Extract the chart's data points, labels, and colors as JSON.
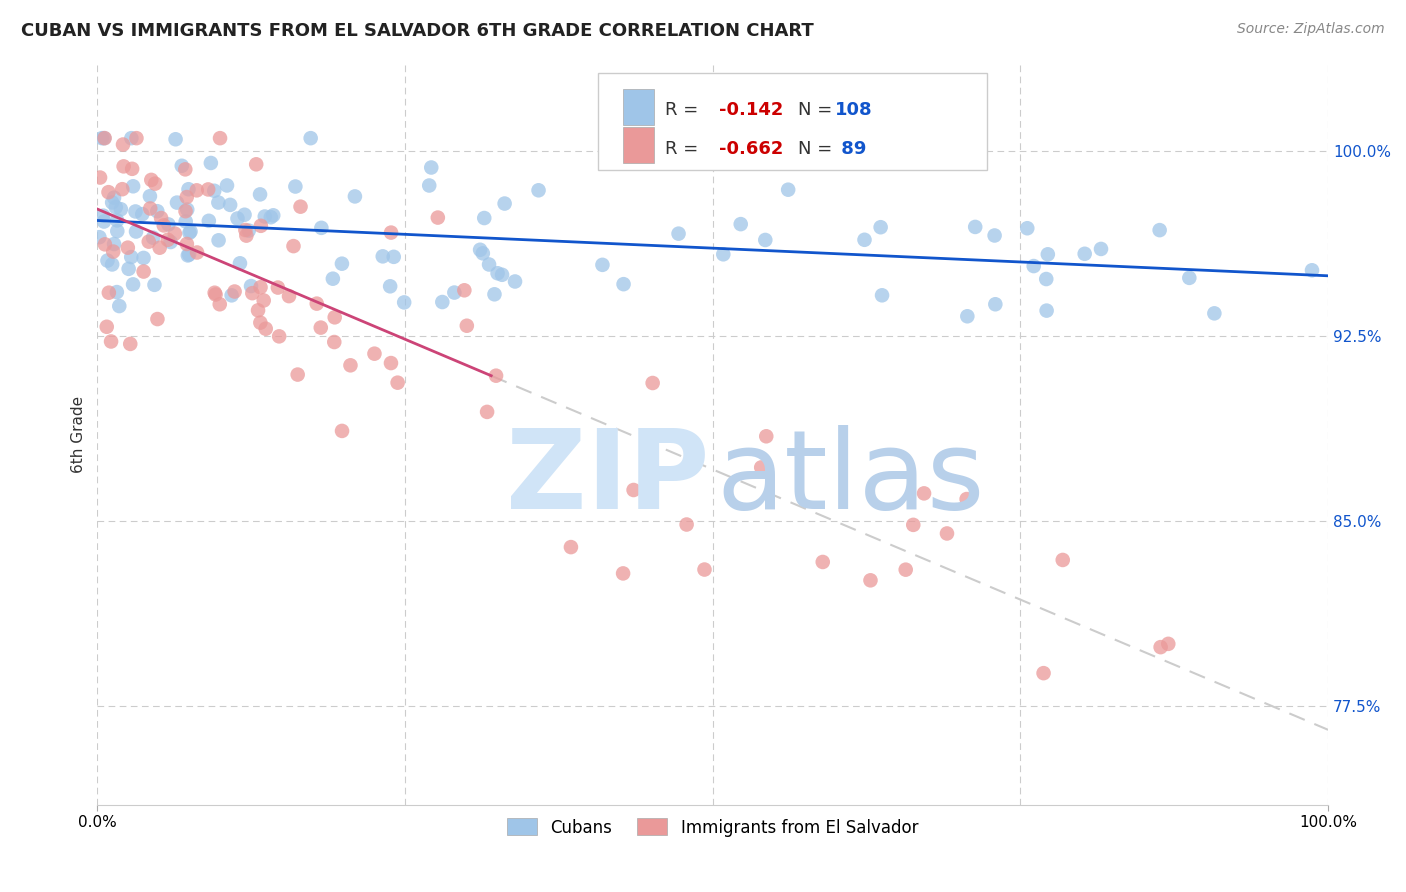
{
  "title": "CUBAN VS IMMIGRANTS FROM EL SALVADOR 6TH GRADE CORRELATION CHART",
  "source": "Source: ZipAtlas.com",
  "ylabel": "6th Grade",
  "ytick_values": [
    0.775,
    0.85,
    0.925,
    1.0
  ],
  "xlim": [
    0.0,
    1.0
  ],
  "ylim": [
    0.735,
    1.035
  ],
  "cubans_R": -0.142,
  "cubans_N": 108,
  "salvador_R": -0.662,
  "salvador_N": 89,
  "blue_scatter_color": "#9fc5e8",
  "pink_scatter_color": "#ea9999",
  "blue_line_color": "#1155cc",
  "pink_line_color": "#cc4477",
  "dashed_line_color": "#cccccc",
  "background_color": "#ffffff",
  "grid_color": "#cccccc",
  "title_fontsize": 13,
  "legend_R_color": "#cc0000",
  "legend_N_color": "#1155cc",
  "seed": 42
}
